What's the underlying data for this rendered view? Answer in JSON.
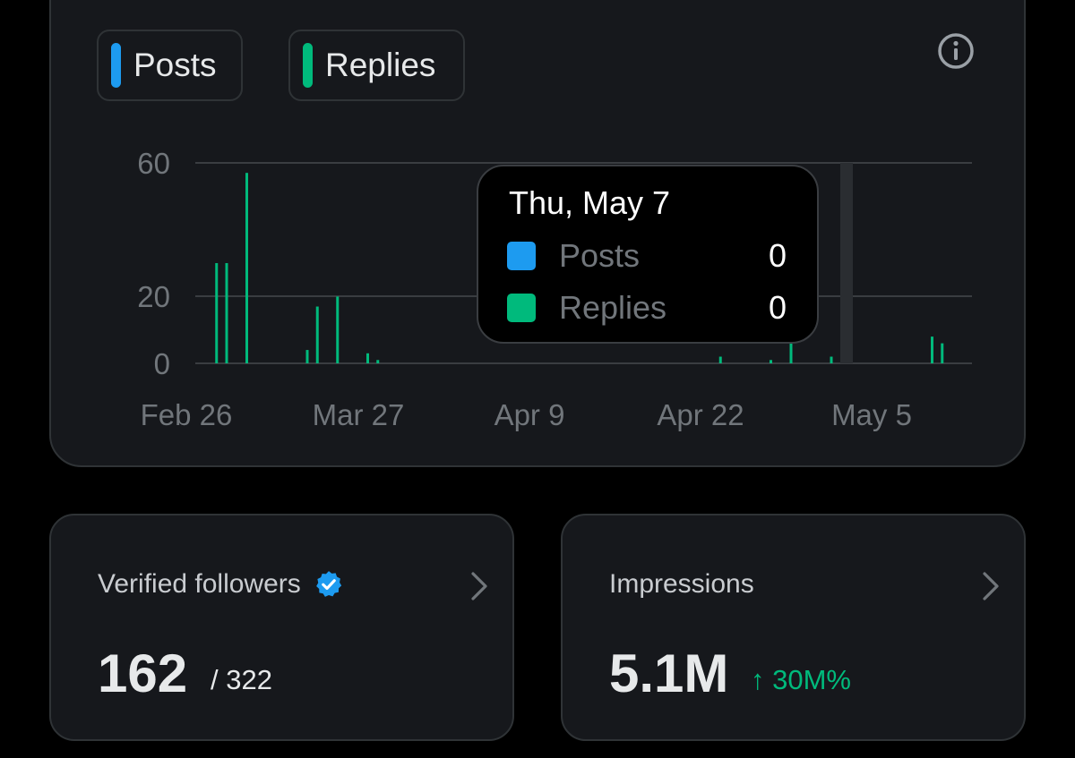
{
  "legend": {
    "posts_label": "Posts",
    "replies_label": "Replies",
    "posts_color": "#1d9bf0",
    "replies_color": "#00ba7c"
  },
  "info_icon": "info-circle-icon",
  "chart_data": {
    "type": "bar",
    "y_ticks": [
      "60",
      "20",
      "0"
    ],
    "x_ticks": [
      "Feb 26",
      "Mar 27",
      "Apr 9",
      "Apr 22",
      "May 5"
    ],
    "ylim": [
      0,
      60
    ],
    "grid": true,
    "series": [
      {
        "name": "Replies",
        "color": "#00ba7c",
        "points": [
          {
            "x": "Mar 1",
            "y": 30
          },
          {
            "x": "Mar 2",
            "y": 30
          },
          {
            "x": "Mar 4",
            "y": 57
          },
          {
            "x": "Mar 10",
            "y": 4
          },
          {
            "x": "Mar 11",
            "y": 17
          },
          {
            "x": "Mar 13",
            "y": 20
          },
          {
            "x": "Mar 16",
            "y": 3
          },
          {
            "x": "Mar 17",
            "y": 1
          },
          {
            "x": "Apr 20",
            "y": 2
          },
          {
            "x": "Apr 25",
            "y": 1
          },
          {
            "x": "Apr 27",
            "y": 6
          },
          {
            "x": "May 1",
            "y": 2
          },
          {
            "x": "May 11",
            "y": 8
          },
          {
            "x": "May 12",
            "y": 6
          }
        ]
      },
      {
        "name": "Posts",
        "color": "#1d9bf0",
        "points": []
      }
    ]
  },
  "tooltip": {
    "date": "Thu, May 7",
    "posts_label": "Posts",
    "posts_value": "0",
    "replies_label": "Replies",
    "replies_value": "0"
  },
  "verified": {
    "title": "Verified followers",
    "badge_icon": "verified-badge-icon",
    "value": "162",
    "sub": "/ 322"
  },
  "impressions": {
    "title": "Impressions",
    "value": "5.1M",
    "change": "↑ 30M%"
  }
}
